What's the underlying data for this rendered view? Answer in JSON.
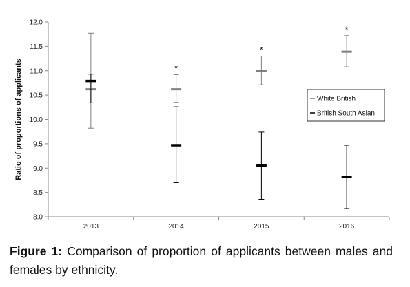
{
  "figure": {
    "caption_label": "Figure 1:",
    "caption_text": "Comparison of proportion of applicants between males and females by ethnicity."
  },
  "chart_data": {
    "type": "scatter",
    "title": "",
    "xlabel": "",
    "ylabel": "Ratio of proportions of applicants",
    "categories": [
      "2013",
      "2014",
      "2015",
      "2016"
    ],
    "ylim": [
      8.0,
      12.0
    ],
    "yticks": [
      "8.0",
      "8.5",
      "9.0",
      "9.5",
      "10.0",
      "10.5",
      "11.0",
      "11.5",
      "12.0"
    ],
    "grid": false,
    "legend_position": "right",
    "series": [
      {
        "name": "White British",
        "color": "#7f7f7f",
        "values": [
          10.62,
          10.62,
          10.99,
          11.39
        ],
        "error_low": [
          9.82,
          10.35,
          10.71,
          11.08
        ],
        "error_high": [
          11.77,
          10.92,
          11.3,
          11.72
        ],
        "significance": [
          "",
          "*",
          "*",
          "*"
        ]
      },
      {
        "name": "British South Asian",
        "color": "#000000",
        "values": [
          10.79,
          9.47,
          9.05,
          8.82
        ],
        "error_low": [
          10.34,
          8.7,
          8.36,
          8.17
        ],
        "error_high": [
          10.93,
          10.26,
          9.74,
          9.47
        ],
        "significance": [
          "",
          "",
          "",
          ""
        ]
      }
    ]
  }
}
